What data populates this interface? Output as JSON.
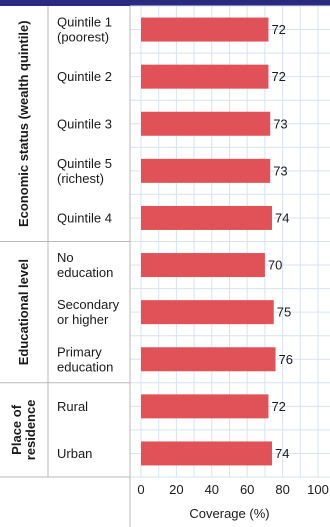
{
  "chart_data": {
    "type": "bar",
    "orientation": "horizontal",
    "xlabel": "Coverage (%)",
    "xlim": [
      0,
      100
    ],
    "xticks": [
      0,
      20,
      40,
      60,
      80,
      100
    ],
    "grid": true,
    "bar_color": "#e05257",
    "groups": [
      {
        "label": "Economic status (wealth quintile)",
        "categories": [
          {
            "label": [
              "Quintile 1",
              "(poorest)"
            ],
            "value": 72
          },
          {
            "label": [
              "Quintile 2"
            ],
            "value": 72
          },
          {
            "label": [
              "Quintile 3"
            ],
            "value": 73
          },
          {
            "label": [
              "Quintile 5",
              "(richest)"
            ],
            "value": 73
          },
          {
            "label": [
              "Quintile 4"
            ],
            "value": 74
          }
        ]
      },
      {
        "label": "Educational level",
        "categories": [
          {
            "label": [
              "No",
              "education"
            ],
            "value": 70
          },
          {
            "label": [
              "Secondary",
              "or higher"
            ],
            "value": 75
          },
          {
            "label": [
              "Primary",
              "education"
            ],
            "value": 76
          }
        ]
      },
      {
        "label": [
          "Place of",
          "residence"
        ],
        "categories": [
          {
            "label": [
              "Rural"
            ],
            "value": 72
          },
          {
            "label": [
              "Urban"
            ],
            "value": 74
          }
        ]
      }
    ]
  }
}
